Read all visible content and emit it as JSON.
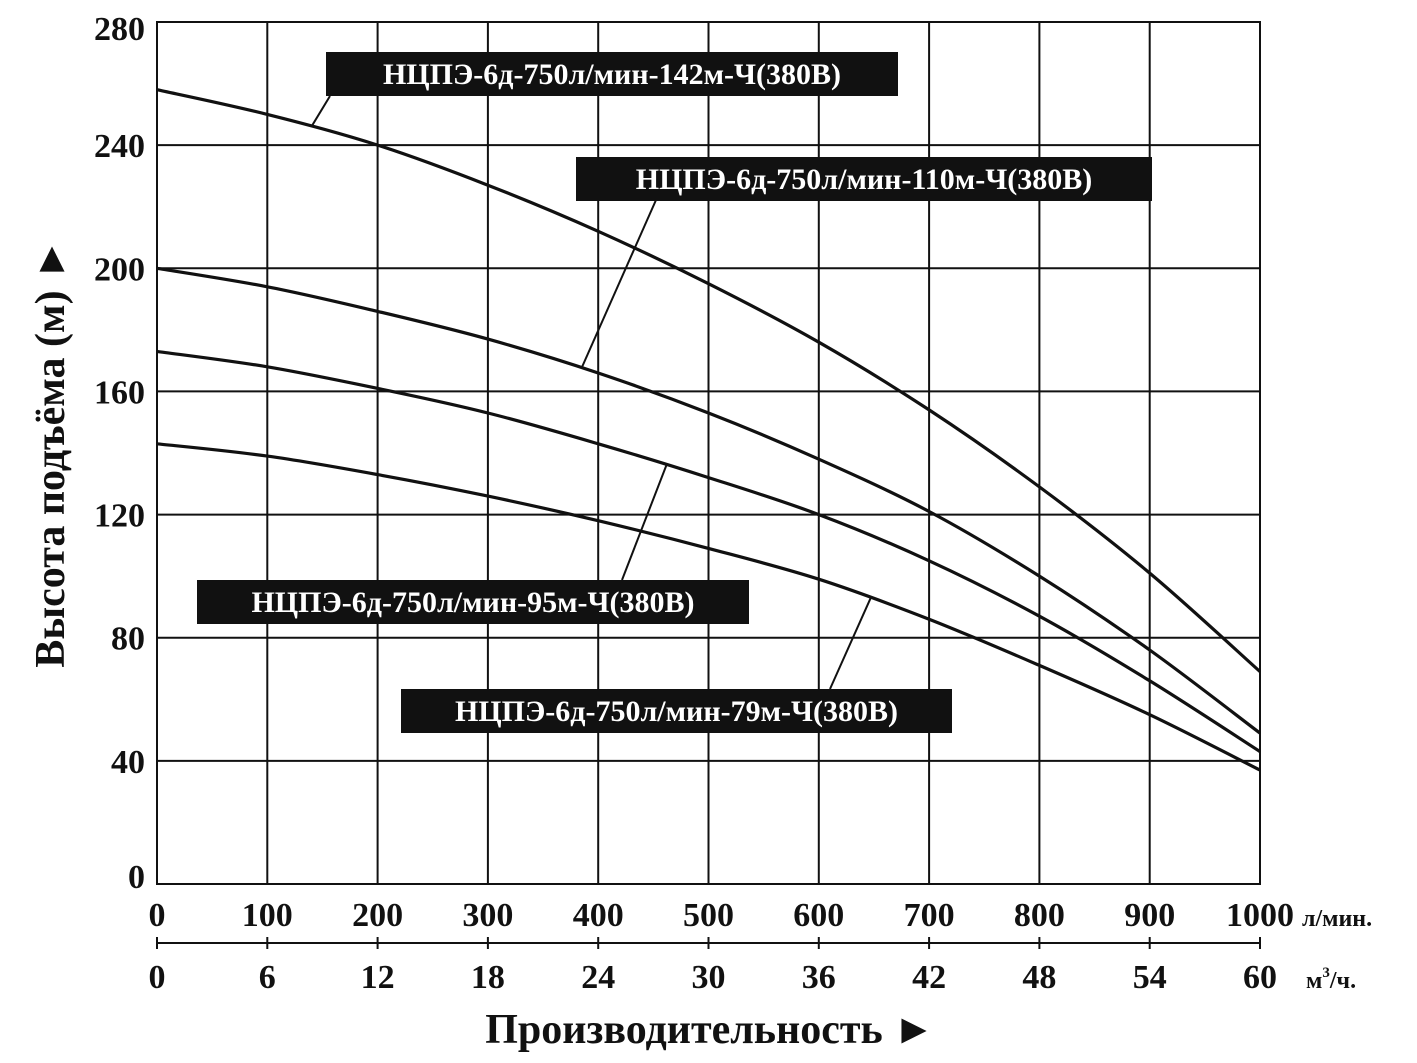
{
  "chart_data": {
    "type": "line",
    "title": "",
    "xlabel": "Производительность ►",
    "ylabel": "Высота подъёма (м) ►",
    "x_unit_primary": "л/мин.",
    "x_unit_secondary_base": "м",
    "x_unit_secondary_sup": "3",
    "x_unit_secondary_tail": "/ч.",
    "xlim": [
      0,
      1000
    ],
    "ylim": [
      0,
      280
    ],
    "grid": true,
    "x_ticks_primary": [
      "0",
      "100",
      "200",
      "300",
      "400",
      "500",
      "600",
      "700",
      "800",
      "900",
      "1000"
    ],
    "x_ticks_secondary": [
      "0",
      "6",
      "12",
      "18",
      "24",
      "30",
      "36",
      "42",
      "48",
      "54",
      "60"
    ],
    "y_ticks": [
      "0",
      "40",
      "80",
      "120",
      "160",
      "200",
      "240",
      "280"
    ],
    "x": [
      0,
      100,
      200,
      300,
      400,
      500,
      600,
      700,
      800,
      900,
      1000
    ],
    "series": [
      {
        "name": "НЦПЭ-6д-750л/мин-142м-Ч(380В)",
        "values": [
          258,
          250,
          240,
          227,
          212,
          195,
          176,
          154,
          129,
          101,
          69
        ]
      },
      {
        "name": "НЦПЭ-6д-750л/мин-110м-Ч(380В)",
        "values": [
          200,
          194,
          186,
          177,
          166,
          153,
          138,
          121,
          100,
          76,
          49
        ]
      },
      {
        "name": "НЦПЭ-6д-750л/мин-95м-Ч(380В)",
        "values": [
          173,
          168,
          161,
          153,
          143,
          132,
          120,
          105,
          87,
          66,
          43
        ]
      },
      {
        "name": "НЦПЭ-6д-750л/мин-79м-Ч(380В)",
        "values": [
          143,
          139,
          133,
          126,
          118,
          109,
          99,
          86,
          71,
          55,
          37
        ]
      }
    ]
  }
}
